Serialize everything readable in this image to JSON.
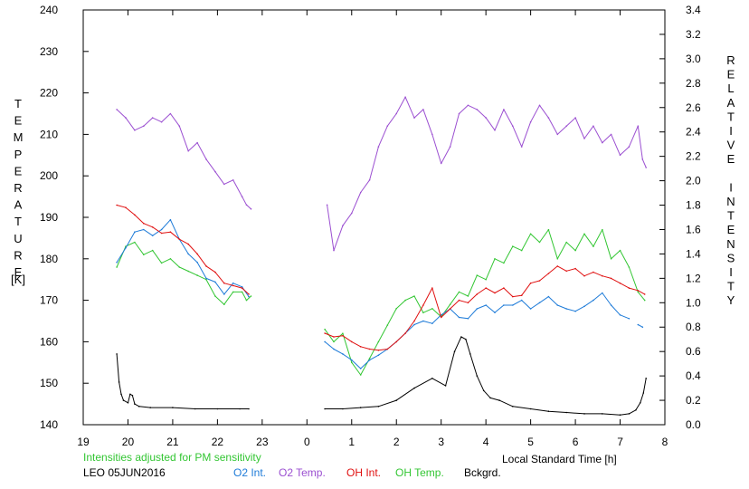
{
  "colors": {
    "axis": "#000000",
    "O2 Int.": "#1e7bd8",
    "O2 Temp.": "#9b4fd1",
    "OH Int.": "#e01010",
    "OH Temp.": "#33c633",
    "Bckgrd.": "#000000",
    "note": "#33c633"
  },
  "chart_data": {
    "type": "line",
    "title": "",
    "xlabel": "Local Standard Time [h]",
    "ylabel_left_letters": [
      "T",
      "E",
      "M",
      "P",
      "E",
      "R",
      "A",
      "T",
      "U",
      "R",
      "E"
    ],
    "ylabel_left_unit": "[K]",
    "ylabel_right_letters": [
      "R",
      "E",
      "L",
      "A",
      "T",
      "I",
      "V",
      "E",
      "",
      "I",
      "N",
      "T",
      "E",
      "N",
      "S",
      "I",
      "T",
      "Y"
    ],
    "x_ticks": [
      "19",
      "20",
      "21",
      "22",
      "23",
      "0",
      "1",
      "2",
      "3",
      "4",
      "5",
      "6",
      "7",
      "8"
    ],
    "y_left_ticks": [
      "140",
      "150",
      "160",
      "170",
      "180",
      "190",
      "200",
      "210",
      "220",
      "230",
      "240"
    ],
    "y_right_ticks": [
      "0.0",
      "0.2",
      "0.4",
      "0.6",
      "0.8",
      "1.0",
      "1.2",
      "1.4",
      "1.6",
      "1.8",
      "2.0",
      "2.2",
      "2.4",
      "2.6",
      "2.8",
      "3.0",
      "3.2",
      "3.4"
    ],
    "xlim": [
      19,
      32
    ],
    "ylim_left": [
      140,
      240
    ],
    "ylim_right": [
      0,
      3.4
    ],
    "annotation": "Intensities adjusted for PM sensitivity",
    "station_date": "LEO 05JUN2016",
    "legend": [
      "O2 Int.",
      "O2 Temp.",
      "OH Int.",
      "OH Temp.",
      "Bckgrd."
    ],
    "series": [
      {
        "name": "O2 Temp.",
        "axis": "left",
        "x": [
          19.75,
          19.95,
          20.15,
          20.35,
          20.55,
          20.75,
          20.95,
          21.15,
          21.35,
          21.55,
          21.75,
          21.95,
          22.15,
          22.35,
          22.55,
          22.65,
          22.75,
          null,
          24.45,
          24.6,
          24.8,
          25.0,
          25.2,
          25.4,
          25.6,
          25.8,
          26.0,
          26.2,
          26.4,
          26.6,
          26.8,
          27.0,
          27.2,
          27.4,
          27.6,
          27.8,
          28.0,
          28.2,
          28.4,
          28.6,
          28.8,
          29.0,
          29.2,
          29.4,
          29.6,
          29.8,
          30.0,
          30.2,
          30.4,
          30.6,
          30.8,
          31.0,
          31.2,
          31.4,
          31.5,
          31.58
        ],
        "y": [
          216,
          214,
          211,
          212,
          214,
          213,
          215,
          212,
          206,
          208,
          204,
          201,
          198,
          199,
          195,
          193,
          192,
          null,
          193,
          182,
          188,
          191,
          196,
          199,
          207,
          212,
          215,
          219,
          214,
          216,
          210,
          203,
          207,
          215,
          217,
          216,
          214,
          211,
          216,
          212,
          207,
          213,
          217,
          214,
          210,
          212,
          214,
          209,
          212,
          208,
          210,
          205,
          207,
          212,
          204,
          202
        ]
      },
      {
        "name": "O2 Int.",
        "axis": "right",
        "x": [
          19.75,
          19.95,
          20.15,
          20.35,
          20.55,
          20.75,
          20.95,
          21.15,
          21.35,
          21.55,
          21.75,
          21.95,
          22.15,
          22.35,
          22.55,
          22.7,
          null,
          24.4,
          24.6,
          24.8,
          25.0,
          25.2,
          25.4,
          25.6,
          25.8,
          26.0,
          26.2,
          26.4,
          26.6,
          26.8,
          27.0,
          27.2,
          27.4,
          27.6,
          27.8,
          28.0,
          28.2,
          28.4,
          28.6,
          28.8,
          29.0,
          29.2,
          29.4,
          29.6,
          29.8,
          30.0,
          30.2,
          30.4,
          30.6,
          30.8,
          31.0,
          31.2,
          null,
          31.4,
          31.5
        ],
        "y": [
          1.33,
          1.45,
          1.58,
          1.6,
          1.55,
          1.6,
          1.68,
          1.52,
          1.4,
          1.33,
          1.2,
          1.17,
          1.07,
          1.16,
          1.13,
          1.05,
          null,
          0.68,
          0.62,
          0.58,
          0.53,
          0.46,
          0.53,
          0.57,
          0.62,
          0.68,
          0.75,
          0.82,
          0.85,
          0.83,
          0.9,
          0.95,
          0.88,
          0.87,
          0.95,
          0.98,
          0.92,
          0.98,
          0.98,
          1.02,
          0.95,
          1.0,
          1.05,
          0.98,
          0.95,
          0.93,
          0.97,
          1.02,
          1.08,
          0.98,
          0.9,
          0.87,
          null,
          0.82,
          0.8
        ]
      },
      {
        "name": "OH Int.",
        "axis": "right",
        "x": [
          19.75,
          19.95,
          20.15,
          20.35,
          20.55,
          20.75,
          20.95,
          21.15,
          21.35,
          21.55,
          21.75,
          21.95,
          22.15,
          22.35,
          22.55,
          22.7,
          null,
          24.4,
          24.6,
          24.8,
          25.0,
          25.2,
          25.4,
          25.6,
          25.8,
          26.0,
          26.2,
          26.4,
          26.6,
          26.8,
          27.0,
          27.2,
          27.4,
          27.6,
          27.8,
          28.0,
          28.2,
          28.4,
          28.6,
          28.8,
          29.0,
          29.2,
          29.4,
          29.6,
          29.8,
          30.0,
          30.2,
          30.4,
          30.6,
          30.8,
          31.0,
          31.2,
          31.4,
          31.55
        ],
        "y": [
          1.8,
          1.78,
          1.72,
          1.65,
          1.62,
          1.57,
          1.58,
          1.52,
          1.48,
          1.4,
          1.3,
          1.25,
          1.16,
          1.14,
          1.12,
          1.07,
          null,
          0.75,
          0.72,
          0.73,
          0.68,
          0.64,
          0.62,
          0.61,
          0.62,
          0.68,
          0.75,
          0.85,
          0.98,
          1.12,
          0.88,
          0.95,
          1.02,
          1.0,
          1.07,
          1.12,
          1.08,
          1.12,
          1.05,
          1.06,
          1.16,
          1.18,
          1.24,
          1.3,
          1.26,
          1.28,
          1.22,
          1.25,
          1.22,
          1.2,
          1.16,
          1.12,
          1.1,
          1.07
        ]
      },
      {
        "name": "OH Temp.",
        "axis": "left",
        "x": [
          19.75,
          19.95,
          20.15,
          20.35,
          20.55,
          20.75,
          20.95,
          21.15,
          21.35,
          21.55,
          21.75,
          21.95,
          22.15,
          22.35,
          22.55,
          22.65,
          22.75,
          null,
          24.4,
          24.6,
          24.8,
          25.0,
          25.2,
          25.4,
          25.6,
          25.8,
          26.0,
          26.2,
          26.4,
          26.6,
          26.8,
          27.0,
          27.2,
          27.4,
          27.6,
          27.8,
          28.0,
          28.2,
          28.4,
          28.6,
          28.8,
          29.0,
          29.2,
          29.4,
          29.6,
          29.8,
          30.0,
          30.2,
          30.4,
          30.6,
          30.8,
          31.0,
          31.2,
          31.4,
          31.55
        ],
        "y": [
          178,
          183,
          184,
          181,
          182,
          179,
          180,
          178,
          177,
          176,
          175,
          171,
          169,
          172,
          172,
          170,
          171,
          null,
          163,
          160,
          162,
          155,
          152,
          156,
          160,
          164,
          168,
          170,
          171,
          167,
          168,
          166,
          169,
          172,
          171,
          176,
          175,
          180,
          179,
          183,
          182,
          186,
          184,
          187,
          180,
          184,
          182,
          186,
          183,
          187,
          180,
          182,
          178,
          172,
          170
        ]
      },
      {
        "name": "Bckgrd.",
        "axis": "right",
        "x": [
          19.75,
          19.8,
          19.85,
          19.9,
          20.0,
          20.05,
          20.1,
          20.15,
          20.25,
          20.5,
          21.0,
          21.5,
          22.0,
          22.5,
          22.7,
          null,
          24.4,
          24.8,
          25.2,
          25.6,
          26.0,
          26.4,
          26.8,
          27.1,
          27.3,
          27.45,
          27.55,
          27.65,
          27.8,
          27.95,
          28.1,
          28.3,
          28.6,
          29.0,
          29.4,
          29.8,
          30.2,
          30.6,
          31.0,
          31.2,
          31.35,
          31.45,
          31.52,
          31.58
        ],
        "y": [
          0.58,
          0.35,
          0.25,
          0.2,
          0.18,
          0.25,
          0.24,
          0.17,
          0.15,
          0.14,
          0.14,
          0.13,
          0.13,
          0.13,
          0.13,
          null,
          0.13,
          0.13,
          0.14,
          0.15,
          0.2,
          0.3,
          0.38,
          0.32,
          0.6,
          0.72,
          0.7,
          0.58,
          0.4,
          0.28,
          0.22,
          0.2,
          0.15,
          0.13,
          0.11,
          0.1,
          0.09,
          0.09,
          0.08,
          0.09,
          0.12,
          0.18,
          0.26,
          0.38
        ]
      }
    ]
  }
}
